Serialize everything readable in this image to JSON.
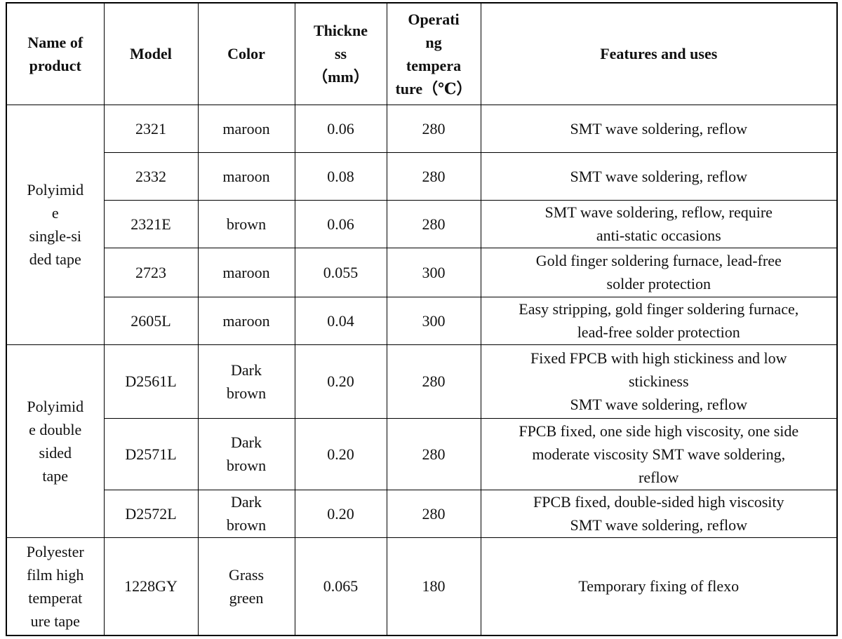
{
  "table": {
    "header": [
      "Name of\nproduct",
      "Model",
      "Color",
      "Thickne\nss\n（mm）",
      "Operati\nng\ntempera\nture（℃）",
      "Features and uses"
    ],
    "groups": [
      {
        "product": "Polyimid\ne\nsingle-si\nded tape",
        "rows": [
          [
            "2321",
            "maroon",
            "0.06",
            "280",
            "SMT wave soldering, reflow"
          ],
          [
            "2332",
            "maroon",
            "0.08",
            "280",
            "SMT wave soldering, reflow"
          ],
          [
            "2321E",
            "brown",
            "0.06",
            "280",
            "SMT wave soldering, reflow, require\nanti-static occasions"
          ],
          [
            "2723",
            "maroon",
            "0.055",
            "300",
            "Gold finger soldering furnace, lead-free\nsolder protection"
          ],
          [
            "2605L",
            "maroon",
            "0.04",
            "300",
            "Easy stripping, gold finger soldering furnace,\nlead-free solder protection"
          ]
        ]
      },
      {
        "product": "Polyimid\ne double\nsided\ntape",
        "rows": [
          [
            "D2561L",
            "Dark\nbrown",
            "0.20",
            "280",
            "Fixed FPCB with high stickiness and low\nstickiness\nSMT wave soldering, reflow"
          ],
          [
            "D2571L",
            "Dark\nbrown",
            "0.20",
            "280",
            "FPCB fixed, one side high viscosity, one side\nmoderate viscosity SMT wave soldering,\nreflow"
          ],
          [
            "D2572L",
            "Dark\nbrown",
            "0.20",
            "280",
            "FPCB fixed, double-sided high viscosity\nSMT wave soldering, reflow"
          ]
        ]
      },
      {
        "product": "Polyester\nfilm high\ntemperat\nure tape",
        "rows": [
          [
            "1228GY",
            "Grass\ngreen",
            "0.065",
            "180",
            "Temporary fixing of flexo"
          ]
        ]
      }
    ]
  }
}
